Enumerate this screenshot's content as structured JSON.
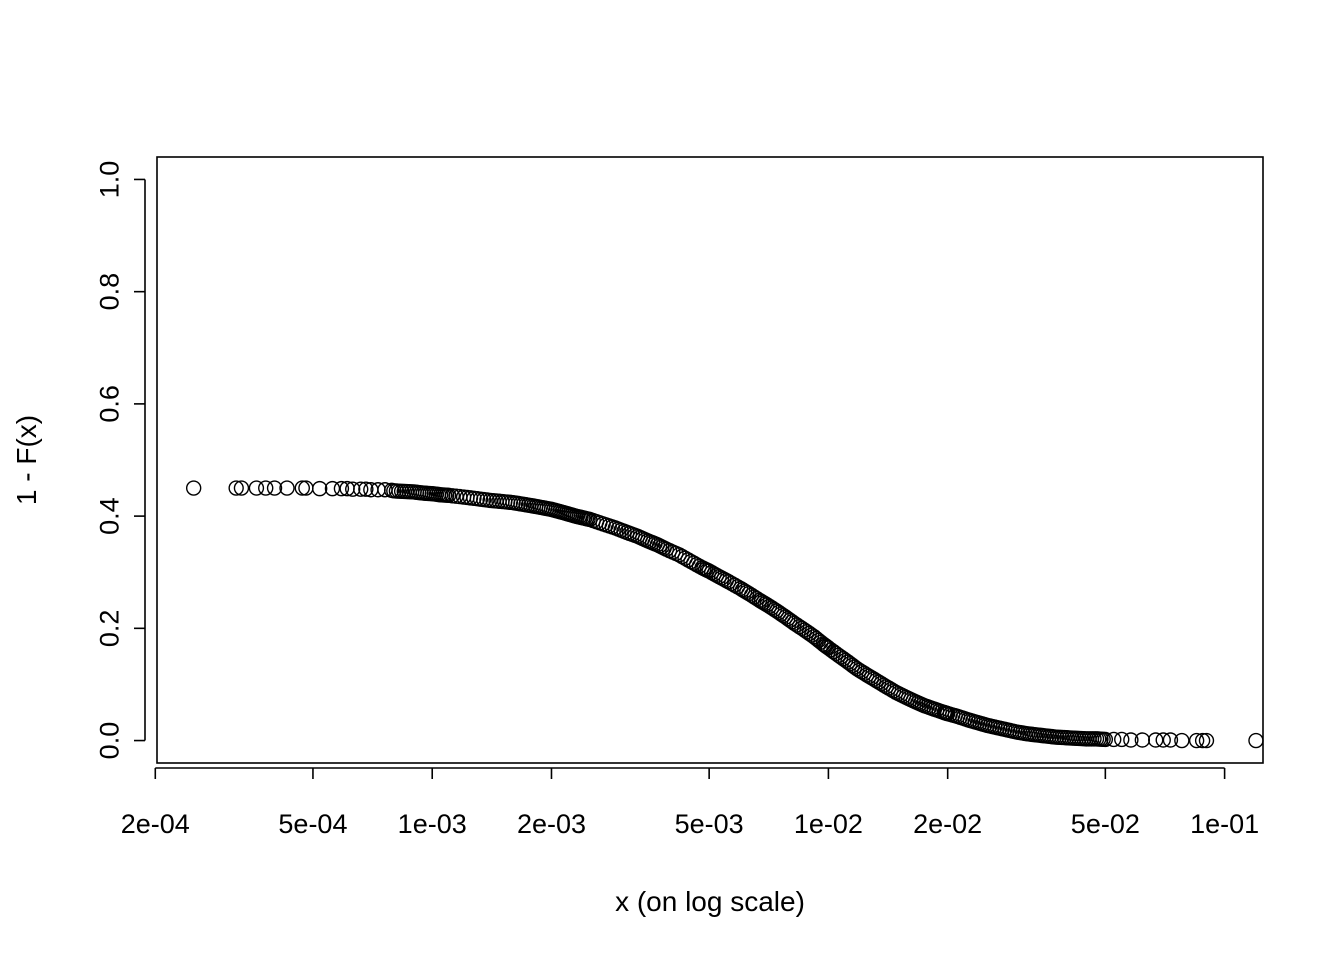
{
  "chart_data": {
    "type": "scatter",
    "title": "",
    "xlabel": "x (on log scale)",
    "ylabel": "1 - F(x)",
    "x_scale": "log",
    "xlim": [
      0.000202,
      0.125
    ],
    "ylim": [
      0,
      1
    ],
    "x_ticks": [
      0.0002,
      0.0005,
      0.001,
      0.002,
      0.005,
      0.01,
      0.02,
      0.05,
      0.1
    ],
    "x_tick_labels": [
      "2e-04",
      "5e-04",
      "1e-03",
      "2e-03",
      "5e-03",
      "1e-02",
      "2e-02",
      "5e-02",
      "1e-01"
    ],
    "y_ticks": [
      0.0,
      0.2,
      0.4,
      0.6,
      0.8,
      1.0
    ],
    "y_tick_labels": [
      "0.0",
      "0.2",
      "0.4",
      "0.6",
      "0.8",
      "1.0"
    ],
    "grid": false,
    "marker": "open-circle",
    "series": [
      {
        "name": "",
        "x": [
          0.00025,
          0.00032,
          0.00033,
          0.00036,
          0.00038,
          0.0004,
          0.00043,
          0.00047,
          0.00048,
          0.00052,
          0.00056,
          0.00059,
          0.00061,
          0.00063,
          0.00066,
          0.00068,
          0.0007,
          0.00073,
          0.00076,
          0.00079,
          0.0008,
          0.00085,
          0.0009,
          0.00095,
          0.001,
          0.00105,
          0.0011,
          0.0012,
          0.0013,
          0.0014,
          0.0015,
          0.0016,
          0.0017,
          0.0018,
          0.0019,
          0.002,
          0.0021,
          0.0022,
          0.0023,
          0.0024,
          0.0025,
          0.0027,
          0.0029,
          0.0031,
          0.0033,
          0.0035,
          0.0037,
          0.0039,
          0.0042,
          0.0045,
          0.0048,
          0.005,
          0.0053,
          0.0056,
          0.006,
          0.0063,
          0.0067,
          0.007,
          0.0074,
          0.0078,
          0.0082,
          0.0087,
          0.0092,
          0.0097,
          0.01,
          0.0106,
          0.0112,
          0.0118,
          0.0125,
          0.0132,
          0.014,
          0.0148,
          0.0157,
          0.0166,
          0.0175,
          0.0185,
          0.0196,
          0.02,
          0.0212,
          0.0225,
          0.0238,
          0.0252,
          0.0267,
          0.0283,
          0.03,
          0.0318,
          0.0336,
          0.0356,
          0.0377,
          0.04,
          0.0423,
          0.0448,
          0.0475,
          0.05,
          0.0525,
          0.055,
          0.058,
          0.062,
          0.067,
          0.07,
          0.073,
          0.078,
          0.085,
          0.088,
          0.09,
          0.12
        ],
        "y": [
          0.45,
          0.45,
          0.45,
          0.45,
          0.45,
          0.45,
          0.45,
          0.45,
          0.45,
          0.449,
          0.449,
          0.449,
          0.449,
          0.448,
          0.448,
          0.448,
          0.447,
          0.447,
          0.447,
          0.446,
          0.445,
          0.444,
          0.443,
          0.441,
          0.44,
          0.438,
          0.437,
          0.434,
          0.431,
          0.428,
          0.426,
          0.424,
          0.421,
          0.418,
          0.415,
          0.412,
          0.408,
          0.404,
          0.4,
          0.397,
          0.394,
          0.386,
          0.379,
          0.371,
          0.364,
          0.356,
          0.349,
          0.341,
          0.331,
          0.319,
          0.308,
          0.302,
          0.292,
          0.283,
          0.271,
          0.262,
          0.25,
          0.242,
          0.231,
          0.22,
          0.209,
          0.197,
          0.185,
          0.172,
          0.165,
          0.152,
          0.14,
          0.128,
          0.117,
          0.107,
          0.096,
          0.086,
          0.077,
          0.069,
          0.062,
          0.056,
          0.05,
          0.048,
          0.043,
          0.037,
          0.032,
          0.027,
          0.023,
          0.019,
          0.015,
          0.012,
          0.01,
          0.008,
          0.006,
          0.005,
          0.004,
          0.003,
          0.003,
          0.002,
          0.002,
          0.002,
          0.001,
          0.001,
          0.001,
          0.001,
          0.001,
          0.0,
          0.0,
          0.0,
          0.0,
          0.0
        ]
      }
    ]
  }
}
